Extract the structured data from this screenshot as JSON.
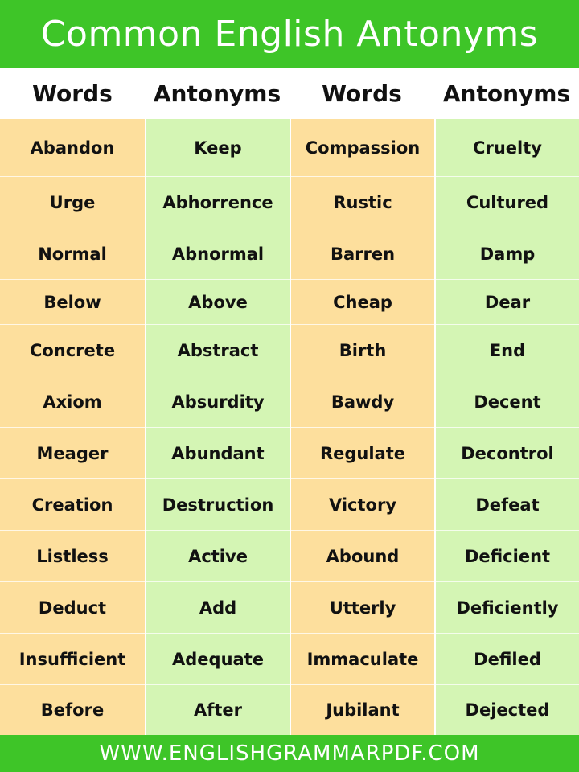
{
  "title": "Common English Antonyms",
  "headers": [
    "Words",
    "Antonyms",
    "Words",
    "Antonyms"
  ],
  "columns": [
    [
      "Abandon",
      "Urge",
      "Normal",
      "Below",
      "Concrete",
      "Axiom",
      "Meager",
      "Creation",
      "Listless",
      "Deduct",
      "Insufficient",
      "Before"
    ],
    [
      "Keep",
      "Abhorrence",
      "Abnormal",
      "Above",
      "Abstract",
      "Absurdity",
      "Abundant",
      "Destruction",
      "Active",
      "Add",
      "Adequate",
      "After"
    ],
    [
      "Compassion",
      "Rustic",
      "Barren",
      "Cheap",
      "Birth",
      "Bawdy",
      "Regulate",
      "Victory",
      "Abound",
      "Utterly",
      "Immaculate",
      "Jubilant"
    ],
    [
      "Cruelty",
      "Cultured",
      "Damp",
      "Dear",
      "End",
      "Decent",
      "Decontrol",
      "Defeat",
      "Deficient",
      "Deficiently",
      "Defiled",
      "Dejected"
    ]
  ],
  "footer": "WWW.ENGLISHGRAMMARPDF.COM",
  "colors": {
    "brand_green": "#3ec528",
    "words_column": "#fddf9d",
    "antonyms_column": "#d4f5b4"
  }
}
